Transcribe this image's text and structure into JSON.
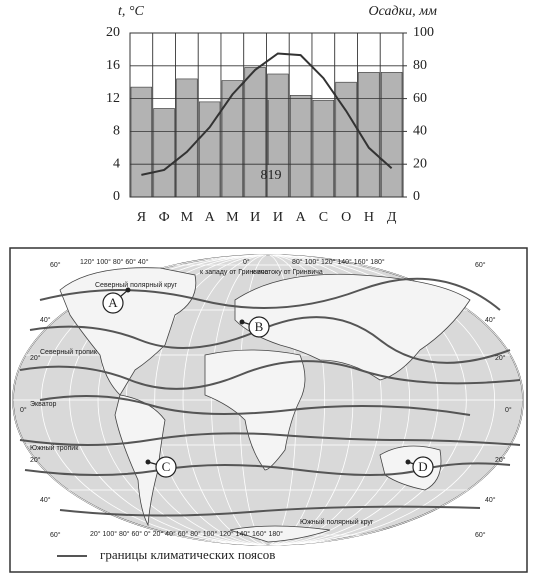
{
  "chart_data": {
    "type": "combo",
    "y_label": "t, °C",
    "y2_label": "Осадки, мм",
    "categories": [
      "Я",
      "Ф",
      "М",
      "А",
      "М",
      "И",
      "И",
      "А",
      "С",
      "О",
      "Н",
      "Д"
    ],
    "series": [
      {
        "type": "bar",
        "axis": "y2",
        "color": "#b3b3b3",
        "values": [
          67,
          54,
          72,
          58,
          71,
          79,
          75,
          62,
          59,
          70,
          76,
          76
        ]
      },
      {
        "type": "line",
        "axis": "y",
        "color": "#333333",
        "values": [
          2.7,
          3.3,
          5.5,
          8.5,
          12.5,
          15.5,
          17.5,
          17.3,
          14.5,
          10.5,
          6,
          3.5
        ]
      }
    ],
    "annotation": "819",
    "ylim": [
      0,
      20
    ],
    "yticks": [
      0,
      4,
      8,
      12,
      16,
      20
    ],
    "y2lim": [
      0,
      100
    ],
    "y2ticks": [
      0,
      20,
      40,
      60,
      80,
      100
    ],
    "grid": true
  },
  "map": {
    "markers": [
      "A",
      "B",
      "C",
      "D"
    ],
    "top_west": "120° 100° 80° 60° 40°",
    "west_note": "к западу от Гринвича",
    "top_zero": "0°",
    "east_note": "к востоку от Гринвича",
    "top_east": "80° 100° 120° 140° 160° 180°",
    "bottom_lon": "20° 100° 80° 60° 0° 20° 40° 60° 80° 100° 120° 140° 160° 180°",
    "north_polar": "Северный полярный круг",
    "north_tropic": "Северный тропик",
    "equator": "Экватор",
    "south_tropic": "Южный тропик",
    "south_polar": "Южный полярный круг",
    "lat_left": [
      "60°",
      "40°",
      "20°",
      "0°",
      "20°",
      "40°",
      "60°"
    ],
    "lat_right": [
      "60°",
      "40°",
      "20°",
      "0°",
      "20°",
      "40°",
      "60°"
    ],
    "legend": "границы климатических поясов"
  }
}
